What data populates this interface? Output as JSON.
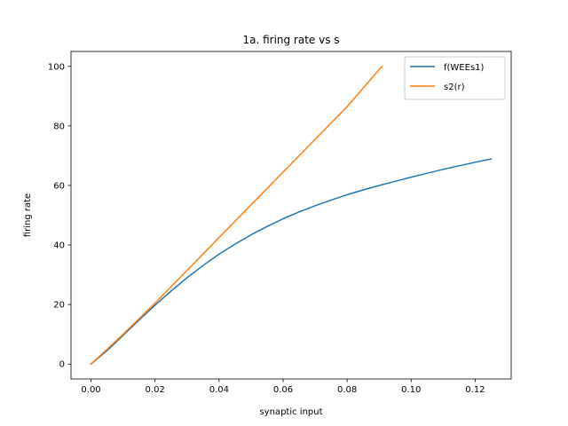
{
  "chart_data": {
    "type": "line",
    "title": "1a. firing rate vs s",
    "xlabel": "synaptic input",
    "ylabel": "firing rate",
    "xlim": [
      -0.00625,
      0.13125
    ],
    "ylim": [
      -5,
      105
    ],
    "xticks": [
      0.0,
      0.02,
      0.04,
      0.06,
      0.08,
      0.1,
      0.12
    ],
    "xtick_labels": [
      "0.00",
      "0.02",
      "0.04",
      "0.06",
      "0.08",
      "0.10",
      "0.12"
    ],
    "yticks": [
      0,
      20,
      40,
      60,
      80,
      100
    ],
    "ytick_labels": [
      "0",
      "20",
      "40",
      "60",
      "80",
      "100"
    ],
    "grid": false,
    "legend_position": "top-right",
    "series": [
      {
        "name": "f(WEEs1)",
        "color": "#1f77b4",
        "x": [
          0.0,
          0.005,
          0.01,
          0.015,
          0.02,
          0.025,
          0.03,
          0.035,
          0.04,
          0.045,
          0.05,
          0.055,
          0.06,
          0.065,
          0.07,
          0.075,
          0.08,
          0.085,
          0.09,
          0.095,
          0.1,
          0.105,
          0.11,
          0.115,
          0.12,
          0.125
        ],
        "y": [
          0,
          4.5,
          9.6,
          14.8,
          19.8,
          24.5,
          29.0,
          33.1,
          36.9,
          40.3,
          43.4,
          46.2,
          48.8,
          51.1,
          53.2,
          55.1,
          56.9,
          58.5,
          60.0,
          61.4,
          62.8,
          64.1,
          65.4,
          66.6,
          67.8,
          68.9
        ]
      },
      {
        "name": "s2(r)",
        "color": "#ff7f0e",
        "x": [
          0.0,
          0.005,
          0.01,
          0.02,
          0.03,
          0.04,
          0.05,
          0.06,
          0.07,
          0.08,
          0.0909
        ],
        "y": [
          0,
          5.0,
          10.0,
          20.5,
          31.5,
          42.5,
          53.5,
          64.5,
          75.5,
          86.5,
          100
        ]
      }
    ]
  }
}
